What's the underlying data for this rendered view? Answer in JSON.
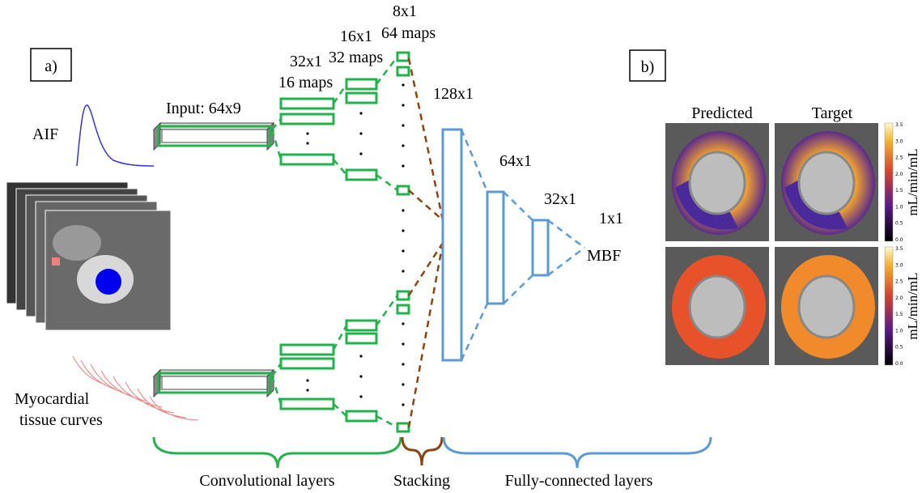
{
  "panel_a": {
    "label": "a)",
    "aif": "AIF",
    "input": "Input: 64x9",
    "conv1": {
      "size": "32x1",
      "maps": "16 maps"
    },
    "conv2": {
      "size": "16x1",
      "maps": "32 maps"
    },
    "conv3": {
      "size": "8x1",
      "maps": "64 maps"
    },
    "fc1": "128x1",
    "fc2": "64x1",
    "fc3": "32x1",
    "output_size": "1x1",
    "output": "MBF",
    "tissue": [
      "Myocardial",
      "tissue curves"
    ],
    "groups": [
      "Convolutional layers",
      "Stacking",
      "Fully-connected layers"
    ]
  },
  "panel_b": {
    "label": "b)",
    "columns": [
      "Predicted",
      "Target"
    ],
    "unit": "mL/min/mL",
    "colorbar_ticks": [
      "3.5",
      "3.0",
      "2.5",
      "2.0",
      "1.5",
      "1.0",
      "0.5",
      "0.0"
    ]
  }
}
